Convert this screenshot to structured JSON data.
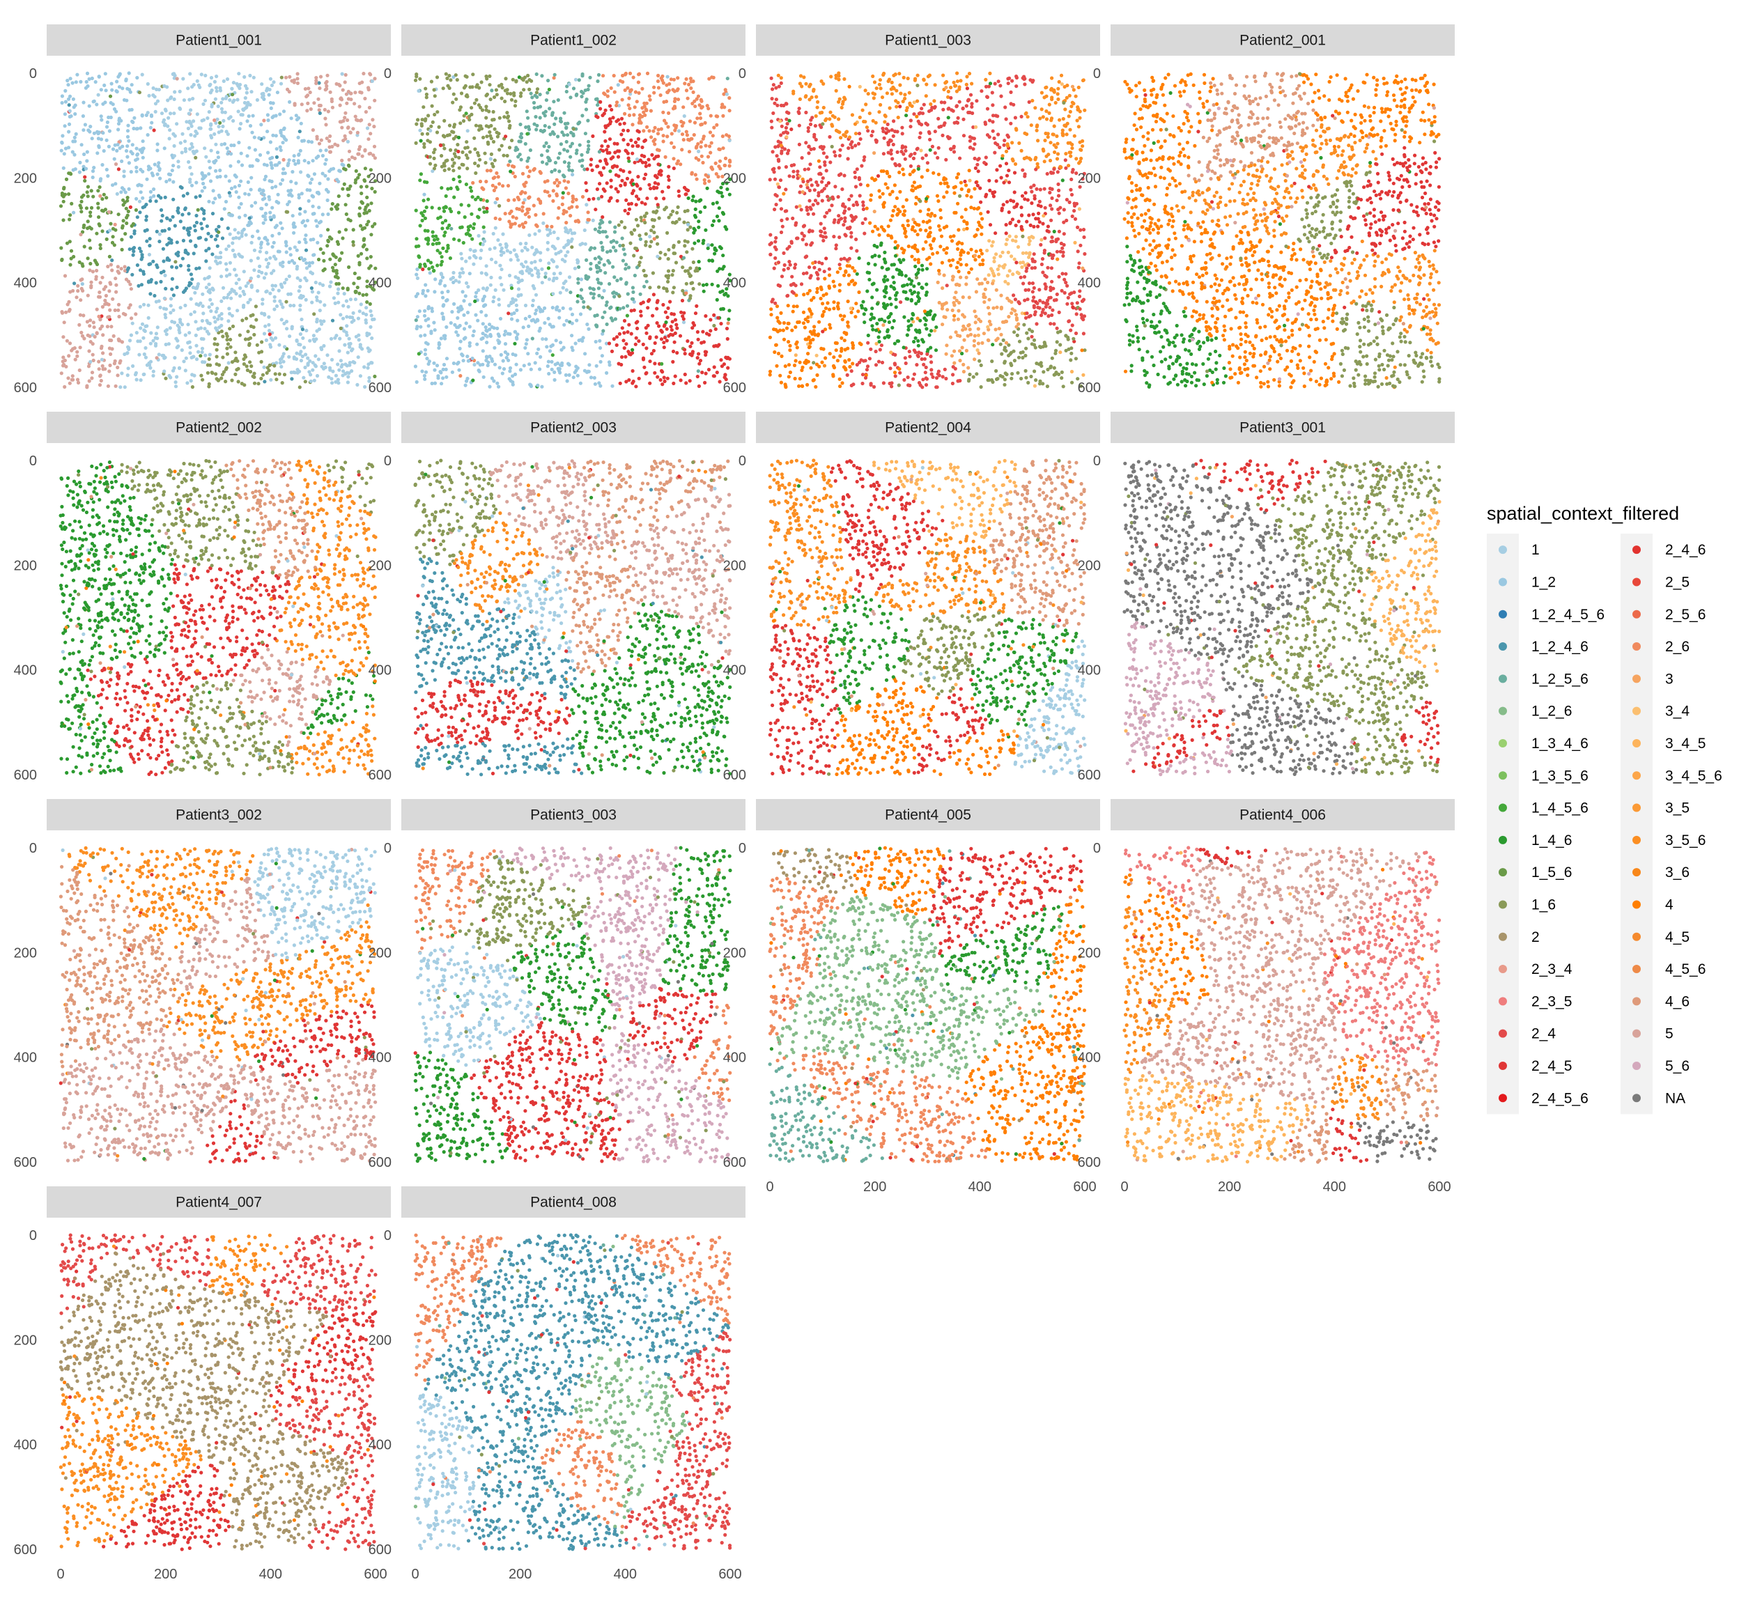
{
  "chart_data": {
    "type": "scatter",
    "facets": [
      "Patient1_001",
      "Patient1_002",
      "Patient1_003",
      "Patient2_001",
      "Patient2_002",
      "Patient2_003",
      "Patient2_004",
      "Patient3_001",
      "Patient3_002",
      "Patient3_003",
      "Patient4_005",
      "Patient4_006",
      "Patient4_007",
      "Patient4_008"
    ],
    "x_ticks": [
      "0",
      "200",
      "400",
      "600"
    ],
    "y_ticks": [
      "0",
      "200",
      "400",
      "600"
    ],
    "xlim": [
      0,
      600
    ],
    "ylim": [
      0,
      600
    ],
    "y_reversed": true,
    "grid": false,
    "legend": {
      "title": "spatial_context_filtered",
      "placement": "right",
      "entries": [
        {
          "label": "1",
          "color": "#a6cee3"
        },
        {
          "label": "1_2",
          "color": "#9ac8e1"
        },
        {
          "label": "1_2_4_5_6",
          "color": "#2f7eb4"
        },
        {
          "label": "1_2_4_6",
          "color": "#4a96ad"
        },
        {
          "label": "1_2_5_6",
          "color": "#6aae9f"
        },
        {
          "label": "1_2_6",
          "color": "#86bc8a"
        },
        {
          "label": "1_3_4_6",
          "color": "#9ad06f"
        },
        {
          "label": "1_3_5_6",
          "color": "#7cc05d"
        },
        {
          "label": "1_4_5_6",
          "color": "#44a83a"
        },
        {
          "label": "1_4_6",
          "color": "#2a9a2f"
        },
        {
          "label": "1_5_6",
          "color": "#6a9a48"
        },
        {
          "label": "1_6",
          "color": "#8a9a58"
        },
        {
          "label": "2",
          "color": "#a8946a"
        },
        {
          "label": "2_3_4",
          "color": "#e89a8a"
        },
        {
          "label": "2_3_5",
          "color": "#ef7d7d"
        },
        {
          "label": "2_4",
          "color": "#e34a4a"
        },
        {
          "label": "2_4_5",
          "color": "#e03636"
        },
        {
          "label": "2_4_5_6",
          "color": "#e31a1c"
        },
        {
          "label": "2_4_6",
          "color": "#e2332f"
        },
        {
          "label": "2_5",
          "color": "#e8483a"
        },
        {
          "label": "2_5_6",
          "color": "#ec6a4a"
        },
        {
          "label": "2_6",
          "color": "#f08a5e"
        },
        {
          "label": "3",
          "color": "#f6a460"
        },
        {
          "label": "3_4",
          "color": "#fbbf70"
        },
        {
          "label": "3_4_5",
          "color": "#fdb45c"
        },
        {
          "label": "3_4_5_6",
          "color": "#fca64a"
        },
        {
          "label": "3_5",
          "color": "#fb9a36"
        },
        {
          "label": "3_5_6",
          "color": "#fb8e22"
        },
        {
          "label": "3_6",
          "color": "#f8871a"
        },
        {
          "label": "4",
          "color": "#ff7f00"
        },
        {
          "label": "4_5",
          "color": "#f58a2e"
        },
        {
          "label": "4_5_6",
          "color": "#ee8a48"
        },
        {
          "label": "4_6",
          "color": "#df9a7a"
        },
        {
          "label": "5",
          "color": "#d8a39a"
        },
        {
          "label": "5_6",
          "color": "#d4a8bc"
        },
        {
          "label": "NA",
          "color": "#7a7a7a"
        }
      ]
    }
  }
}
